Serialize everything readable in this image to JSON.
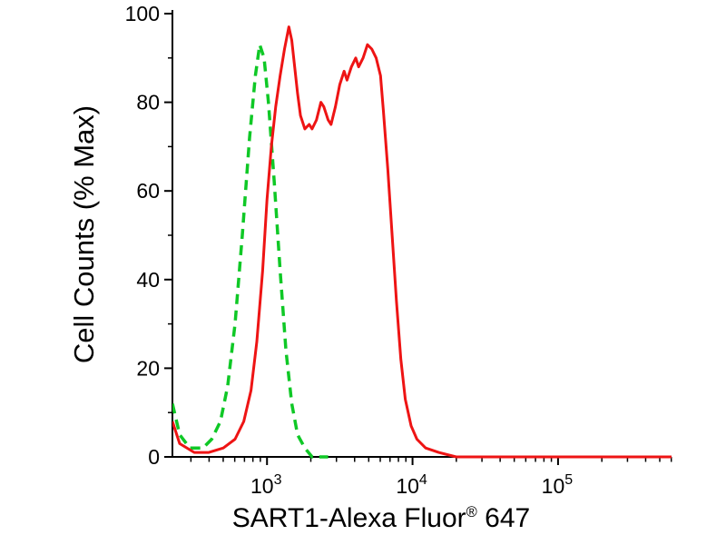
{
  "chart_data": {
    "type": "line",
    "title": "",
    "ylabel": "Cell Counts (% Max)",
    "xlabel": "SART1-Alexa Fluor® 647",
    "xlabel_parts": {
      "main": "SART1-Alexa Fluor",
      "sup": "®",
      "tail": " 647"
    },
    "x_scale": "log10",
    "x_range_log10": [
      2.35,
      5.78
    ],
    "xlim": [
      224,
      600000
    ],
    "ylim": [
      0,
      100
    ],
    "y_ticks": [
      0,
      20,
      40,
      60,
      80,
      100
    ],
    "y_minor_tick_step": 10,
    "x_major_ticks": [
      1000,
      10000,
      100000
    ],
    "grid": false,
    "legend": "none",
    "axis_color": "#000000",
    "background_color": "#ffffff",
    "series": [
      {
        "name": "green-dashed",
        "color": "#0fc826",
        "line_style": "dashed",
        "width": 3.5,
        "points_log10x_y": [
          [
            2.35,
            12
          ],
          [
            2.4,
            5
          ],
          [
            2.47,
            2
          ],
          [
            2.56,
            2
          ],
          [
            2.62,
            4
          ],
          [
            2.68,
            8
          ],
          [
            2.73,
            16
          ],
          [
            2.78,
            30
          ],
          [
            2.83,
            50
          ],
          [
            2.88,
            72
          ],
          [
            2.92,
            86
          ],
          [
            2.95,
            93
          ],
          [
            2.98,
            90
          ],
          [
            3.01,
            80
          ],
          [
            3.05,
            62
          ],
          [
            3.09,
            42
          ],
          [
            3.13,
            24
          ],
          [
            3.17,
            12
          ],
          [
            3.21,
            5
          ],
          [
            3.26,
            2
          ],
          [
            3.31,
            0
          ],
          [
            3.42,
            0
          ]
        ]
      },
      {
        "name": "red-solid",
        "color": "#ee1414",
        "line_style": "solid",
        "width": 3,
        "points_log10x_y": [
          [
            2.35,
            8
          ],
          [
            2.4,
            3
          ],
          [
            2.5,
            1
          ],
          [
            2.6,
            1
          ],
          [
            2.7,
            2
          ],
          [
            2.78,
            4
          ],
          [
            2.84,
            8
          ],
          [
            2.89,
            15
          ],
          [
            2.93,
            26
          ],
          [
            2.97,
            42
          ],
          [
            3.0,
            58
          ],
          [
            3.03,
            70
          ],
          [
            3.06,
            79
          ],
          [
            3.09,
            86
          ],
          [
            3.12,
            92
          ],
          [
            3.15,
            97
          ],
          [
            3.17,
            94
          ],
          [
            3.19,
            88
          ],
          [
            3.21,
            82
          ],
          [
            3.23,
            77
          ],
          [
            3.26,
            74
          ],
          [
            3.29,
            75
          ],
          [
            3.31,
            74
          ],
          [
            3.34,
            76
          ],
          [
            3.37,
            80
          ],
          [
            3.39,
            79
          ],
          [
            3.42,
            76
          ],
          [
            3.44,
            75
          ],
          [
            3.47,
            79
          ],
          [
            3.5,
            84
          ],
          [
            3.53,
            87
          ],
          [
            3.55,
            85
          ],
          [
            3.58,
            88
          ],
          [
            3.61,
            90
          ],
          [
            3.63,
            88
          ],
          [
            3.66,
            90
          ],
          [
            3.69,
            93
          ],
          [
            3.72,
            92
          ],
          [
            3.75,
            90
          ],
          [
            3.78,
            86
          ],
          [
            3.8,
            78
          ],
          [
            3.83,
            65
          ],
          [
            3.86,
            50
          ],
          [
            3.89,
            35
          ],
          [
            3.92,
            22
          ],
          [
            3.95,
            13
          ],
          [
            3.99,
            7
          ],
          [
            4.03,
            4
          ],
          [
            4.09,
            2
          ],
          [
            4.18,
            1
          ],
          [
            4.3,
            0
          ],
          [
            5.78,
            0
          ]
        ]
      }
    ]
  }
}
